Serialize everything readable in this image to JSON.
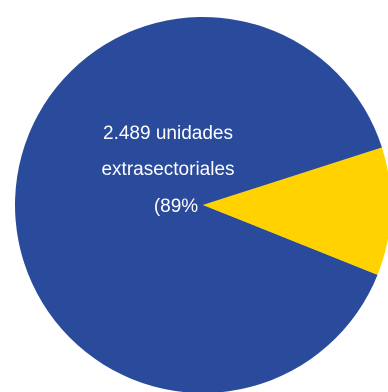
{
  "chart_data": {
    "type": "pie",
    "title": "",
    "slices": [
      {
        "value": 89,
        "color": "#2a4b9b",
        "label_lines": [
          "2.489 unidades",
          "extrasectoriales",
          "(89%"
        ]
      },
      {
        "value": 11,
        "color": "#ffd200",
        "label_lines": []
      }
    ],
    "legend": "none"
  }
}
